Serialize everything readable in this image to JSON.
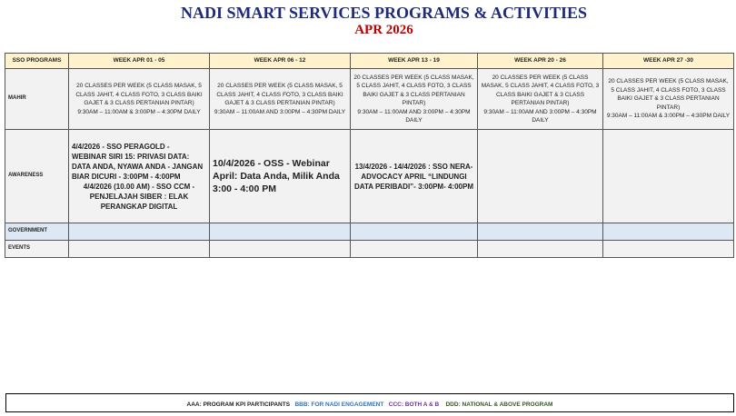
{
  "header": {
    "title": "NADI SMART SERVICES PROGRAMS & ACTIVITIES",
    "subtitle": "APR 2026"
  },
  "table": {
    "columns": [
      "SSO PROGRAMS",
      "WEEK APR  01 - 05",
      "WEEK APR  06 - 12",
      "WEEK APR 13 - 19",
      "WEEK APR  20 - 26",
      "WEEK APR 27 -30"
    ],
    "mahir": {
      "label": "MAHIR",
      "cells": [
        {
          "desc": "20 CLASSES PER WEEK (5 CLASS MASAK, 5 CLASS JAHIT, 4 CLASS FOTO, 3 CLASS BAIKI GAJET & 3 CLASS PERTANIAN PINTAR)",
          "time": "9:30AM – 11:00AM & 3:00PM – 4:30PM DAILY"
        },
        {
          "desc": "20 CLASSES PER WEEK (5 CLASS MASAK, 5 CLASS JAHIT, 4 CLASS FOTO, 3 CLASS BAIKI GAJET & 3 CLASS PERTANIAN PINTAR)",
          "time": "9:30AM – 11:00AM AND 3:00PM – 4:30PM DAILY"
        },
        {
          "desc": "20 CLASSES PER WEEK (5 CLASS MASAK, 5 CLASS JAHIT, 4 CLASS FOTO, 3 CLASS BAIKI GAJET & 3 CLASS PERTANIAN PINTAR)",
          "time": "9:30AM – 11:00AM AND 3:00PM – 4:30PM DAILY"
        },
        {
          "desc": "20 CLASSES PER WEEK (5 CLASS MASAK, 5 CLASS JAHIT, 4 CLASS FOTO, 3 CLASS BAIKI GAJET & 3 CLASS PERTANIAN PINTAR)",
          "time": "9:30AM – 11:00AM AND 3:00PM – 4:30PM DAILY"
        },
        {
          "desc": "20 CLASSES PER WEEK (5 CLASS MASAK, 5 CLASS JAHIT, 4 CLASS FOTO, 3 CLASS BAIKI GAJET & 3 CLASS PERTANIAN PINTAR)",
          "time": "9:30AM – 11:00AM & 3:00PM – 4:30PM DAILY"
        }
      ]
    },
    "awareness": {
      "label": "AWARENESS",
      "week1a": "4/4/2026 - SSO PERAGOLD - WEBINAR SIRI 15: PRIVASI DATA: DATA ANDA, NYAWA ANDA - JANGAN BIAR DICURI - 3:00PM - 4:00PM",
      "week1b": "4/4/2026 (10.00 AM) - SSO CCM - PENJELAJAH SIBER : ELAK PERANGKAP DIGITAL",
      "week2": "10/4/2026 - OSS - Webinar April: Data Anda, Milik Anda 3:00 - 4:00 PM",
      "week3": "13/4/2026 - 14/4/2026 : SSO NERA- ADVOCACY APRIL “LINDUNGI DATA PERIBADI”- 3:00PM- 4:00PM"
    },
    "government": {
      "label": "GOVERNMENT"
    },
    "events": {
      "label": "EVENTS"
    }
  },
  "legend": {
    "aaa": "AAA: PROGRAM KPI PARTICIPANTS",
    "bbb": "BBB:  FOR NADI ENGAGEMENT",
    "ccc": "CCC:  BOTH  A & B",
    "ddd": "DDD: NATIONAL & ABOVE PROGRAM"
  },
  "colors": {
    "title": "#1f2a7a",
    "subtitle": "#c00000",
    "header_bg": "#fff2cc",
    "gov_bg": "#dde8f4",
    "bbb": "#2e75b6",
    "ccc": "#7030a0",
    "ddd": "#375623"
  }
}
